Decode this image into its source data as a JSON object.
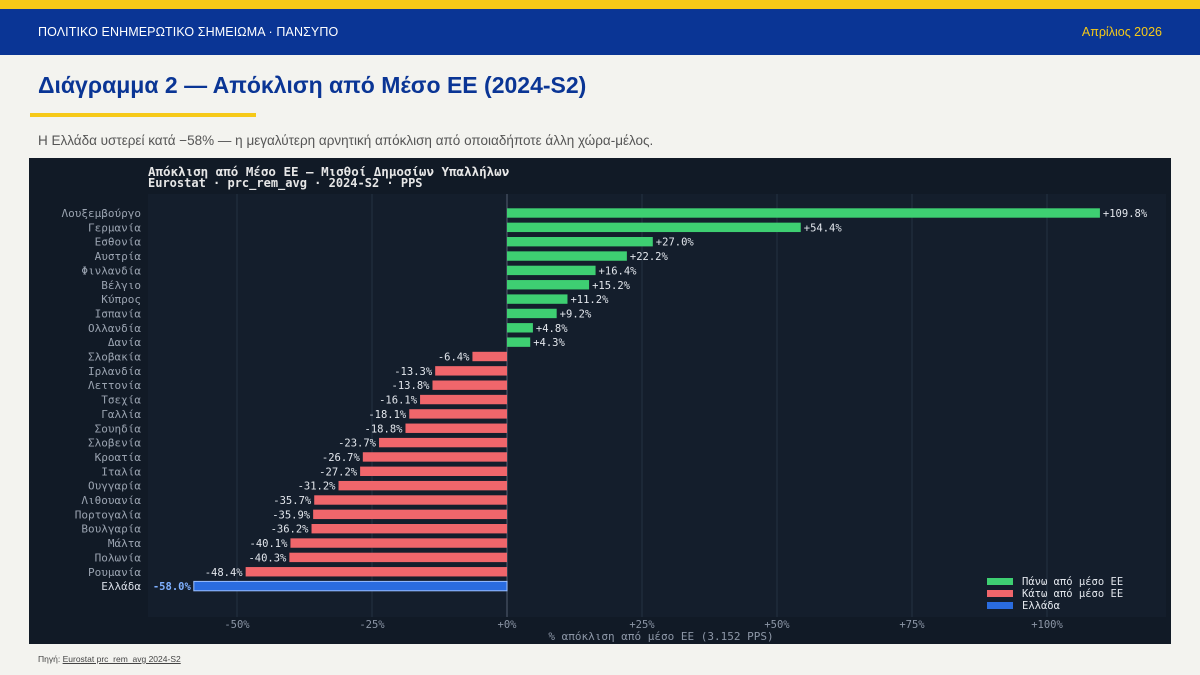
{
  "header": {
    "title": "ΠΟΛΙΤΙΚΟ ΕΝΗΜΕΡΩΤΙΚΟ ΣΗΜΕΙΩΜΑ · ΠΑΝΣΥΠΟ",
    "date": "Απρίλιος 2026"
  },
  "page": {
    "title": "Διάγραμμα 2 — Απόκλιση από Μέσο ΕΕ (2024-S2)",
    "subtitle": "Η Ελλάδα υστερεί κατά −58% — η μεγαλύτερη αρνητική απόκλιση από οποιαδήποτε άλλη χώρα-μέλος."
  },
  "source": {
    "label": "Πηγή:",
    "link": "Eurostat prc_rem_avg 2024-S2"
  },
  "colors": {
    "above": "#3ecf72",
    "below": "#f0666b",
    "greece": "#2a6ce0",
    "panel_bg": "#111a26"
  },
  "chart_data": {
    "type": "bar",
    "orientation": "horizontal",
    "title": "Απόκλιση από Μέσο ΕΕ — Μισθοί Δημοσίων Υπαλλήλων",
    "subtitle": "Eurostat · prc_rem_avg · 2024-S2 · PPS",
    "xlabel": "% απόκλιση από μέσο ΕΕ (3.152 PPS)",
    "ylabel": "",
    "xlim": [
      -66,
      118
    ],
    "xticks": [
      -50,
      -25,
      0,
      25,
      50,
      75,
      100
    ],
    "xtick_labels": [
      "-50%",
      "-25%",
      "+0%",
      "+25%",
      "+50%",
      "+75%",
      "+100%"
    ],
    "grid": true,
    "legend_position": "bottom-right",
    "legend": [
      {
        "label": "Πάνω από μέσο ΕΕ",
        "color": "#3ecf72"
      },
      {
        "label": "Κάτω από μέσο ΕΕ",
        "color": "#f0666b"
      },
      {
        "label": "Ελλάδα",
        "color": "#2a6ce0"
      }
    ],
    "categories": [
      "Λουξεμβούργο",
      "Γερμανία",
      "Εσθονία",
      "Αυστρία",
      "Φινλανδία",
      "Βέλγιο",
      "Κύπρος",
      "Ισπανία",
      "Ολλανδία",
      "Δανία",
      "Σλοβακία",
      "Ιρλανδία",
      "Λεττονία",
      "Τσεχία",
      "Γαλλία",
      "Σουηδία",
      "Σλοβενία",
      "Κροατία",
      "Ιταλία",
      "Ουγγαρία",
      "Λιθουανία",
      "Πορτογαλία",
      "Βουλγαρία",
      "Μάλτα",
      "Πολωνία",
      "Ρουμανία",
      "Ελλάδα"
    ],
    "values": [
      109.8,
      54.4,
      27.0,
      22.2,
      16.4,
      15.2,
      11.2,
      9.2,
      4.8,
      4.3,
      -6.4,
      -13.3,
      -13.8,
      -16.1,
      -18.1,
      -18.8,
      -23.7,
      -26.7,
      -27.2,
      -31.2,
      -35.7,
      -35.9,
      -36.2,
      -40.1,
      -40.3,
      -48.4,
      -58.0
    ],
    "value_labels": [
      "+109.8%",
      "+54.4%",
      "+27.0%",
      "+22.2%",
      "+16.4%",
      "+15.2%",
      "+11.2%",
      "+9.2%",
      "+4.8%",
      "+4.3%",
      "-6.4%",
      "-13.3%",
      "-13.8%",
      "-16.1%",
      "-18.1%",
      "-18.8%",
      "-23.7%",
      "-26.7%",
      "-27.2%",
      "-31.2%",
      "-35.7%",
      "-35.9%",
      "-36.2%",
      "-40.1%",
      "-40.3%",
      "-48.4%",
      "-58.0%"
    ],
    "highlight": "Ελλάδα"
  }
}
